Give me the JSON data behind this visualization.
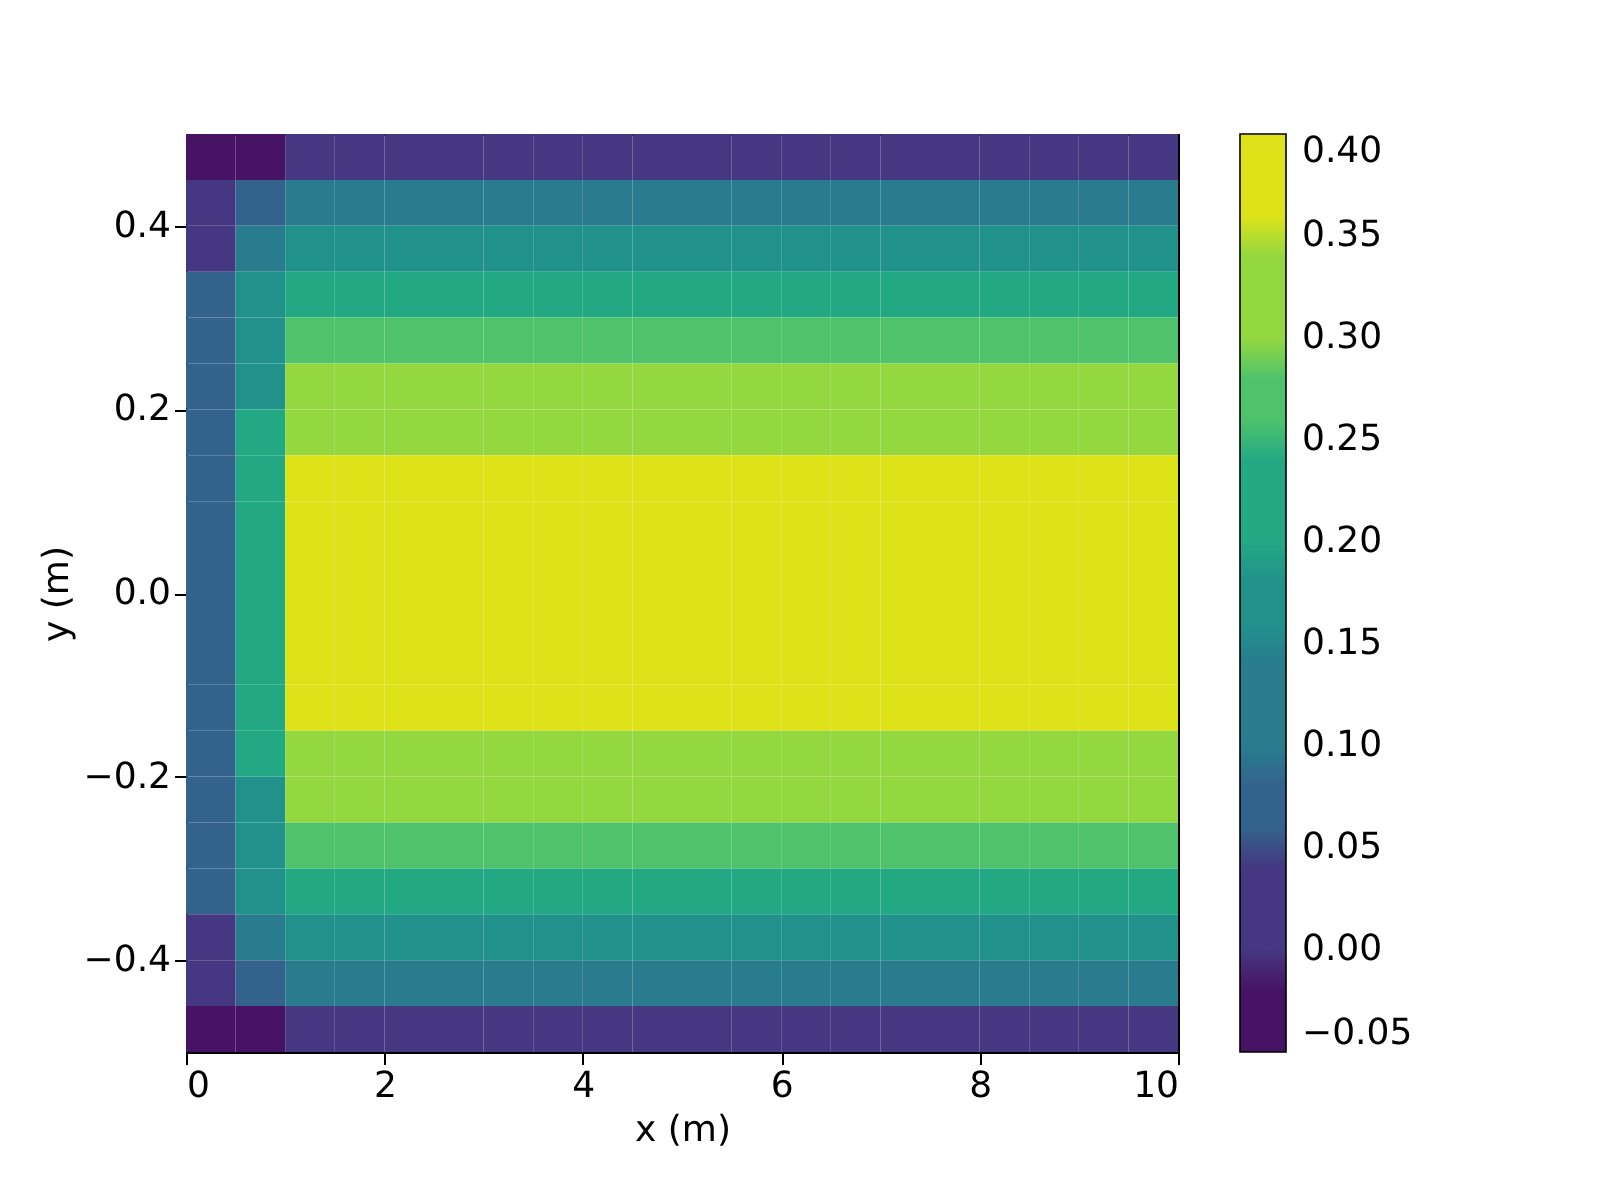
{
  "chart_data": {
    "type": "heatmap",
    "xlabel": "x (m)",
    "ylabel": "y (m)",
    "xlim": [
      0,
      10
    ],
    "xticks": [
      0,
      2,
      4,
      6,
      8,
      10
    ],
    "ylim": [
      -0.5,
      0.5
    ],
    "yticks": [
      {
        "value": -0.4,
        "label": "−0.4"
      },
      {
        "value": -0.2,
        "label": "−0.2"
      },
      {
        "value": 0,
        "label": "0.0"
      },
      {
        "value": 0.2,
        "label": "0.2"
      },
      {
        "value": 0.4,
        "label": "0.4"
      }
    ],
    "clim": [
      -0.05,
      0.4
    ],
    "cticks": [
      {
        "value": -0.05,
        "label": "−0.05"
      },
      {
        "value": 0,
        "label": "0.00"
      },
      {
        "value": 0.05,
        "label": "0.05"
      },
      {
        "value": 0.1,
        "label": "0.10"
      },
      {
        "value": 0.15,
        "label": "0.15"
      },
      {
        "value": 0.2,
        "label": "0.20"
      },
      {
        "value": 0.25,
        "label": "0.25"
      },
      {
        "value": 0.3,
        "label": "0.30"
      },
      {
        "value": 0.35,
        "label": "0.35"
      },
      {
        "value": 0.4,
        "label": "0.40"
      }
    ],
    "colors": [
      "#471365",
      "#453781",
      "#33638d",
      "#287c8e",
      "#21918c",
      "#23a884",
      "#4ec36b",
      "#94d840",
      "#dde318"
    ],
    "cells": [
      [
        -0.025,
        -0.025,
        0.025,
        0.025,
        0.025,
        0.025,
        0.025,
        0.025,
        0.025,
        0.025,
        0.025,
        0.025,
        0.025,
        0.025,
        0.025,
        0.025,
        0.025,
        0.025,
        0.025,
        0.025
      ],
      [
        0.025,
        0.075,
        0.125,
        0.125,
        0.125,
        0.125,
        0.125,
        0.125,
        0.125,
        0.125,
        0.125,
        0.125,
        0.125,
        0.125,
        0.125,
        0.125,
        0.125,
        0.125,
        0.125,
        0.125
      ],
      [
        0.025,
        0.125,
        0.175,
        0.175,
        0.175,
        0.175,
        0.175,
        0.175,
        0.175,
        0.175,
        0.175,
        0.175,
        0.175,
        0.175,
        0.175,
        0.175,
        0.175,
        0.175,
        0.175,
        0.175
      ],
      [
        0.075,
        0.175,
        0.225,
        0.225,
        0.225,
        0.225,
        0.225,
        0.225,
        0.225,
        0.225,
        0.225,
        0.225,
        0.225,
        0.225,
        0.225,
        0.225,
        0.225,
        0.225,
        0.225,
        0.225
      ],
      [
        0.075,
        0.175,
        0.275,
        0.275,
        0.275,
        0.275,
        0.275,
        0.275,
        0.275,
        0.275,
        0.275,
        0.275,
        0.275,
        0.275,
        0.275,
        0.275,
        0.275,
        0.275,
        0.275,
        0.275
      ],
      [
        0.075,
        0.175,
        0.325,
        0.325,
        0.325,
        0.325,
        0.325,
        0.325,
        0.325,
        0.325,
        0.325,
        0.325,
        0.325,
        0.325,
        0.325,
        0.325,
        0.325,
        0.325,
        0.325,
        0.325
      ],
      [
        0.075,
        0.225,
        0.325,
        0.325,
        0.325,
        0.325,
        0.325,
        0.325,
        0.325,
        0.325,
        0.325,
        0.325,
        0.325,
        0.325,
        0.325,
        0.325,
        0.325,
        0.325,
        0.325,
        0.325
      ],
      [
        0.075,
        0.225,
        0.375,
        0.375,
        0.375,
        0.375,
        0.375,
        0.375,
        0.375,
        0.375,
        0.375,
        0.375,
        0.375,
        0.375,
        0.375,
        0.375,
        0.375,
        0.375,
        0.375,
        0.375
      ],
      [
        0.075,
        0.225,
        0.375,
        0.375,
        0.375,
        0.375,
        0.375,
        0.375,
        0.375,
        0.375,
        0.375,
        0.375,
        0.375,
        0.375,
        0.375,
        0.375,
        0.375,
        0.375,
        0.375,
        0.375
      ],
      [
        0.075,
        0.225,
        0.375,
        0.375,
        0.375,
        0.375,
        0.375,
        0.375,
        0.375,
        0.375,
        0.375,
        0.375,
        0.375,
        0.375,
        0.375,
        0.375,
        0.375,
        0.375,
        0.375,
        0.375
      ],
      [
        0.075,
        0.225,
        0.375,
        0.375,
        0.375,
        0.375,
        0.375,
        0.375,
        0.375,
        0.375,
        0.375,
        0.375,
        0.375,
        0.375,
        0.375,
        0.375,
        0.375,
        0.375,
        0.375,
        0.375
      ],
      [
        0.075,
        0.225,
        0.375,
        0.375,
        0.375,
        0.375,
        0.375,
        0.375,
        0.375,
        0.375,
        0.375,
        0.375,
        0.375,
        0.375,
        0.375,
        0.375,
        0.375,
        0.375,
        0.375,
        0.375
      ],
      [
        0.075,
        0.225,
        0.375,
        0.375,
        0.375,
        0.375,
        0.375,
        0.375,
        0.375,
        0.375,
        0.375,
        0.375,
        0.375,
        0.375,
        0.375,
        0.375,
        0.375,
        0.375,
        0.375,
        0.375
      ],
      [
        0.075,
        0.225,
        0.325,
        0.325,
        0.325,
        0.325,
        0.325,
        0.325,
        0.325,
        0.325,
        0.325,
        0.325,
        0.325,
        0.325,
        0.325,
        0.325,
        0.325,
        0.325,
        0.325,
        0.325
      ],
      [
        0.075,
        0.175,
        0.325,
        0.325,
        0.325,
        0.325,
        0.325,
        0.325,
        0.325,
        0.325,
        0.325,
        0.325,
        0.325,
        0.325,
        0.325,
        0.325,
        0.325,
        0.325,
        0.325,
        0.325
      ],
      [
        0.075,
        0.175,
        0.275,
        0.275,
        0.275,
        0.275,
        0.275,
        0.275,
        0.275,
        0.275,
        0.275,
        0.275,
        0.275,
        0.275,
        0.275,
        0.275,
        0.275,
        0.275,
        0.275,
        0.275
      ],
      [
        0.075,
        0.175,
        0.225,
        0.225,
        0.225,
        0.225,
        0.225,
        0.225,
        0.225,
        0.225,
        0.225,
        0.225,
        0.225,
        0.225,
        0.225,
        0.225,
        0.225,
        0.225,
        0.225,
        0.225
      ],
      [
        0.025,
        0.125,
        0.175,
        0.175,
        0.175,
        0.175,
        0.175,
        0.175,
        0.175,
        0.175,
        0.175,
        0.175,
        0.175,
        0.175,
        0.175,
        0.175,
        0.175,
        0.175,
        0.175,
        0.175
      ],
      [
        0.025,
        0.075,
        0.125,
        0.125,
        0.125,
        0.125,
        0.125,
        0.125,
        0.125,
        0.125,
        0.125,
        0.125,
        0.125,
        0.125,
        0.125,
        0.125,
        0.125,
        0.125,
        0.125,
        0.125
      ],
      [
        -0.025,
        -0.025,
        0.025,
        0.025,
        0.025,
        0.025,
        0.025,
        0.025,
        0.025,
        0.025,
        0.025,
        0.025,
        0.025,
        0.025,
        0.025,
        0.025,
        0.025,
        0.025,
        0.025,
        0.025
      ]
    ]
  }
}
